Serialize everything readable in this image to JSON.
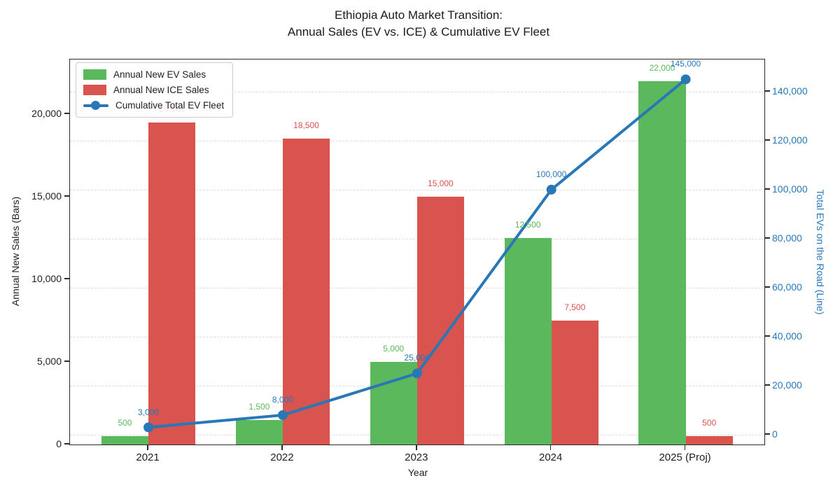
{
  "figure": {
    "title_line1": "Ethiopia Auto Market Transition:",
    "title_line2": "Annual Sales (EV vs. ICE) & Cumulative EV Fleet",
    "xlabel": "Year",
    "ylabel_left": "Annual New Sales (Bars)",
    "ylabel_right": "Total EVs on the Road (Line)"
  },
  "legend": {
    "items": [
      {
        "label": "Annual New EV Sales",
        "kind": "patch",
        "color": "#5cb85c"
      },
      {
        "label": "Annual New ICE Sales",
        "kind": "patch",
        "color": "#d9534f"
      },
      {
        "label": "Cumulative Total EV Fleet",
        "kind": "line",
        "color": "#2878b8"
      }
    ]
  },
  "chart_data": {
    "type": "bar",
    "title": "Ethiopia Auto Market Transition: Annual Sales (EV vs. ICE) & Cumulative EV Fleet",
    "categories": [
      "2021",
      "2022",
      "2023",
      "2024",
      "2025 (Proj)"
    ],
    "series": [
      {
        "name": "Annual New EV Sales",
        "chart": "bar",
        "axis": "left",
        "color": "#5cb85c",
        "values": [
          500,
          1500,
          5000,
          12500,
          22000
        ],
        "labels": [
          "500",
          "1,500",
          "5,000",
          "12,500",
          "22,000"
        ]
      },
      {
        "name": "Annual New ICE Sales",
        "chart": "bar",
        "axis": "left",
        "color": "#d9534f",
        "values": [
          19500,
          18500,
          15000,
          7500,
          500
        ],
        "labels": [
          "19,500",
          "18,500",
          "15,000",
          "7,500",
          "500"
        ]
      },
      {
        "name": "Cumulative Total EV Fleet",
        "chart": "line",
        "axis": "right",
        "color": "#2878b8",
        "values": [
          3000,
          8000,
          25000,
          100000,
          145000
        ],
        "labels": [
          "3,000",
          "8,000",
          "25,000",
          "100,000",
          "145,000"
        ]
      }
    ],
    "xlabel": "Year",
    "ylabel": "Annual New Sales (Bars)",
    "ylabel_right": "Total EVs on the Road (Line)",
    "left_axis": {
      "ticks": [
        0,
        5000,
        10000,
        15000,
        20000
      ],
      "tick_labels": [
        "0",
        "5,000",
        "10,000",
        "15,000",
        "20,000"
      ],
      "range": [
        0,
        23300
      ],
      "color": "#212121"
    },
    "right_axis": {
      "ticks": [
        0,
        20000,
        40000,
        60000,
        80000,
        100000,
        120000,
        140000
      ],
      "tick_labels": [
        "0",
        "20,000",
        "40,000",
        "60,000",
        "80,000",
        "100,000",
        "120,000",
        "140,000"
      ],
      "range": [
        -4000,
        153100
      ],
      "color": "#2878b8"
    },
    "grid": {
      "axis": "y",
      "style": "dashed",
      "follows": "right_axis",
      "color": "#dcdcdc"
    },
    "legend_position": "upper left",
    "bar_width_fraction": 0.35,
    "colors": {
      "ev_green": "#5cb85c",
      "ice_red": "#d9534f",
      "fleet_blue": "#2878b8"
    }
  }
}
